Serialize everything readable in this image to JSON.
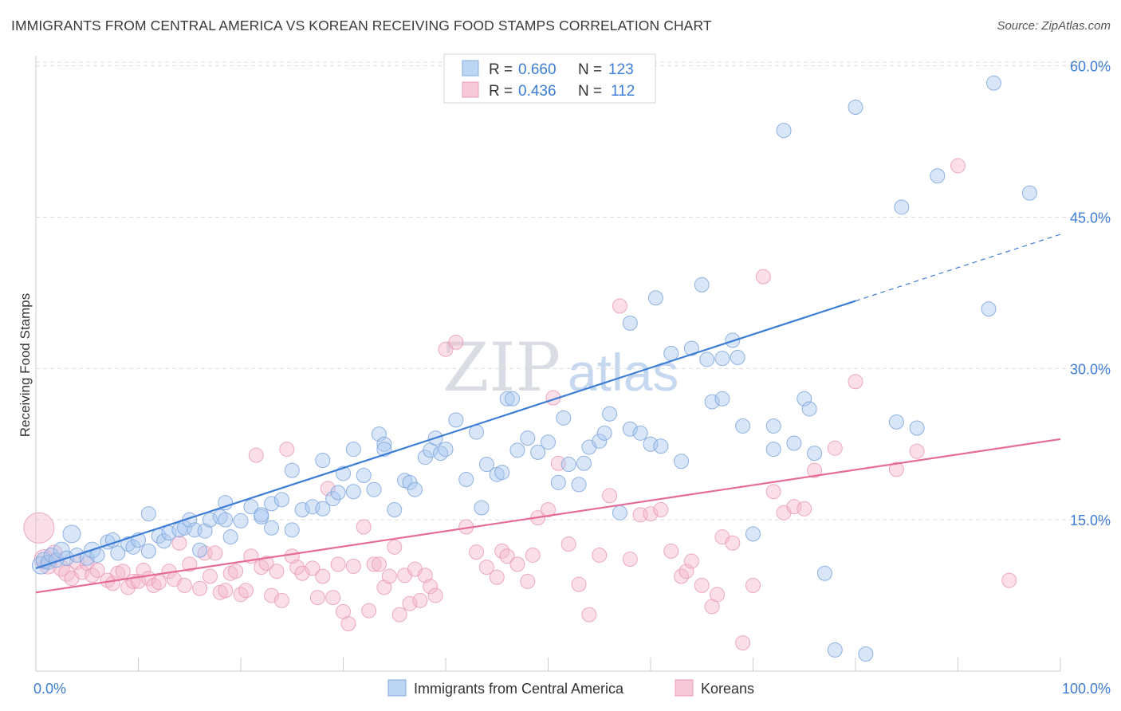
{
  "title": "IMMIGRANTS FROM CENTRAL AMERICA VS KOREAN RECEIVING FOOD STAMPS CORRELATION CHART",
  "source": "Source: ZipAtlas.com",
  "watermark": {
    "zip": "ZIP",
    "atlas": "atlas"
  },
  "colors": {
    "blue": "#3d7dd6",
    "blue_fill": "#a9c8ef",
    "pink": "#e66b9a",
    "pink_fill": "#f4b8cc",
    "grid": "#dddddd"
  },
  "legend": {
    "blue": {
      "r_label": "R =",
      "r_value": "0.660",
      "n_label": "N =",
      "n_value": "123"
    },
    "pink": {
      "r_label": "R =",
      "r_value": "0.436",
      "n_label": "N =",
      "n_value": "112"
    }
  },
  "chart_data": {
    "type": "scatter",
    "title": "IMMIGRANTS FROM CENTRAL AMERICA VS KOREAN RECEIVING FOOD STAMPS CORRELATION CHART",
    "xlabel": "",
    "ylabel": "Receiving Food Stamps",
    "xlim": [
      0,
      100
    ],
    "ylim": [
      0,
      61
    ],
    "x_tick_labels": [
      "0.0%",
      "100.0%"
    ],
    "y_ticks": [
      15,
      30,
      45,
      60
    ],
    "y_tick_labels": [
      "15.0%",
      "30.0%",
      "45.0%",
      "60.0%"
    ],
    "grid": true,
    "legend_placement": "top-center",
    "series": [
      {
        "name": "Immigrants from Central America",
        "color": "#3d7dd6",
        "r": 0.66,
        "n": 123,
        "trend": {
          "x0": 0,
          "y0": 10.2,
          "x1": 80,
          "y1": 36.7,
          "dash_to_x": 100,
          "dash_to_y": 43.3
        },
        "points": [
          [
            0.5,
            10.5,
            9
          ],
          [
            0.8,
            11,
            8
          ],
          [
            1.2,
            10.8,
            7
          ],
          [
            1.5,
            11.5,
            7
          ],
          [
            2,
            11,
            7
          ],
          [
            2.5,
            12,
            8
          ],
          [
            3,
            11.2,
            7
          ],
          [
            3.5,
            13.6,
            9
          ],
          [
            4,
            11.5,
            7
          ],
          [
            5,
            11.2,
            7
          ],
          [
            5.5,
            12,
            8
          ],
          [
            6,
            11.5,
            7
          ],
          [
            7,
            12.8,
            7
          ],
          [
            7.5,
            13,
            7
          ],
          [
            8,
            11.7,
            7
          ],
          [
            9,
            12.6,
            7
          ],
          [
            9.5,
            12.3,
            7
          ],
          [
            10,
            13,
            7
          ],
          [
            11,
            11.9,
            7
          ],
          [
            11,
            15.6,
            7
          ],
          [
            12,
            13.4,
            7
          ],
          [
            12.5,
            12.9,
            7
          ],
          [
            13,
            13.7,
            7
          ],
          [
            14,
            14,
            7
          ],
          [
            14.5,
            14.2,
            7
          ],
          [
            15,
            15,
            7
          ],
          [
            15.5,
            14,
            7
          ],
          [
            16,
            12,
            7
          ],
          [
            16.5,
            13.9,
            7
          ],
          [
            17,
            15,
            7
          ],
          [
            18,
            15.3,
            7
          ],
          [
            18.5,
            15,
            7
          ],
          [
            18.5,
            16.7,
            7
          ],
          [
            19,
            13.3,
            7
          ],
          [
            20,
            14.9,
            7
          ],
          [
            21,
            16.3,
            7
          ],
          [
            22,
            15.3,
            7
          ],
          [
            22,
            15.5,
            7
          ],
          [
            23,
            14.2,
            7
          ],
          [
            23,
            16.6,
            7
          ],
          [
            24,
            17,
            7
          ],
          [
            25,
            19.9,
            7
          ],
          [
            25,
            14,
            7
          ],
          [
            26,
            16,
            7
          ],
          [
            27,
            16.3,
            7
          ],
          [
            28,
            20.9,
            7
          ],
          [
            28,
            16.1,
            7
          ],
          [
            29,
            17.1,
            7
          ],
          [
            29.5,
            17.7,
            7
          ],
          [
            30,
            19.6,
            7
          ],
          [
            31,
            22,
            7
          ],
          [
            31,
            17.8,
            7
          ],
          [
            32,
            19.4,
            7
          ],
          [
            33,
            18,
            7
          ],
          [
            33.5,
            23.5,
            7
          ],
          [
            34,
            22.5,
            7
          ],
          [
            34,
            22,
            7
          ],
          [
            35,
            16,
            7
          ],
          [
            36,
            18.9,
            7
          ],
          [
            36.5,
            18.7,
            7
          ],
          [
            37,
            18,
            7
          ],
          [
            38,
            21.2,
            7
          ],
          [
            38.5,
            21.9,
            7
          ],
          [
            39,
            23.1,
            7
          ],
          [
            39.5,
            21.6,
            7
          ],
          [
            40,
            22,
            7
          ],
          [
            41,
            24.9,
            7
          ],
          [
            42,
            19,
            7
          ],
          [
            43,
            23.7,
            7
          ],
          [
            43.5,
            16.2,
            7
          ],
          [
            44,
            20.5,
            7
          ],
          [
            45,
            19.5,
            7
          ],
          [
            45.5,
            19.7,
            7
          ],
          [
            46,
            27,
            7
          ],
          [
            46.5,
            27,
            7
          ],
          [
            47,
            21.9,
            7
          ],
          [
            48,
            23.1,
            7
          ],
          [
            49,
            21.7,
            7
          ],
          [
            50,
            22.7,
            7
          ],
          [
            51,
            18.7,
            7
          ],
          [
            51.5,
            25.1,
            7
          ],
          [
            52,
            20.5,
            7
          ],
          [
            53,
            18.5,
            7
          ],
          [
            53.5,
            20.6,
            7
          ],
          [
            54,
            22.2,
            7
          ],
          [
            55,
            22.8,
            7
          ],
          [
            55.5,
            23.6,
            7
          ],
          [
            56,
            25.5,
            7
          ],
          [
            57,
            15.7,
            7
          ],
          [
            58,
            34.5,
            7
          ],
          [
            58,
            24,
            7
          ],
          [
            59,
            23.6,
            7
          ],
          [
            60,
            22.5,
            7
          ],
          [
            60.5,
            37,
            7
          ],
          [
            61,
            22.3,
            7
          ],
          [
            62,
            31.5,
            7
          ],
          [
            63,
            20.8,
            7
          ],
          [
            64,
            32,
            7
          ],
          [
            65,
            38.3,
            7
          ],
          [
            65.5,
            30.9,
            7
          ],
          [
            66,
            26.7,
            7
          ],
          [
            67,
            27,
            7
          ],
          [
            67,
            31,
            7
          ],
          [
            68,
            32.8,
            7
          ],
          [
            68.5,
            31.1,
            7
          ],
          [
            69,
            24.3,
            7
          ],
          [
            70,
            13.6,
            7
          ],
          [
            72,
            24.3,
            7
          ],
          [
            72,
            22,
            7
          ],
          [
            73,
            53.6,
            7
          ],
          [
            74,
            22.6,
            7
          ],
          [
            75,
            27,
            7
          ],
          [
            75.5,
            26,
            7
          ],
          [
            76,
            21.6,
            7
          ],
          [
            77,
            9.7,
            7
          ],
          [
            78,
            2.1,
            7
          ],
          [
            80,
            55.9,
            7
          ],
          [
            81,
            1.7,
            7
          ],
          [
            84,
            24.7,
            7
          ],
          [
            84.5,
            46,
            7
          ],
          [
            86,
            24.1,
            7
          ],
          [
            88,
            49.1,
            7
          ],
          [
            93,
            35.9,
            7
          ],
          [
            93.5,
            58.3,
            7
          ],
          [
            97,
            47.4,
            7
          ]
        ]
      },
      {
        "name": "Koreans",
        "color": "#e66b9a",
        "r": 0.436,
        "n": 112,
        "trend": {
          "x0": 0,
          "y0": 7.8,
          "x1": 100,
          "y1": 23
        },
        "points": [
          [
            0.3,
            14.2,
            17
          ],
          [
            0.8,
            11.1,
            10
          ],
          [
            1.2,
            10.5,
            9
          ],
          [
            1.8,
            11.7,
            8
          ],
          [
            2.5,
            10.2,
            8
          ],
          [
            3,
            9.7,
            8
          ],
          [
            3.5,
            9.2,
            7
          ],
          [
            4,
            10.8,
            7
          ],
          [
            4.5,
            9.8,
            7
          ],
          [
            5,
            10.7,
            7
          ],
          [
            5.5,
            9.5,
            7
          ],
          [
            6,
            10,
            7
          ],
          [
            7,
            9,
            7
          ],
          [
            7.5,
            8.7,
            7
          ],
          [
            8,
            9.7,
            7
          ],
          [
            8.5,
            9.9,
            7
          ],
          [
            9,
            8.3,
            7
          ],
          [
            9.5,
            8.9,
            7
          ],
          [
            10,
            8.9,
            7
          ],
          [
            10.5,
            10,
            7
          ],
          [
            11,
            9.2,
            7
          ],
          [
            11.5,
            8.5,
            7
          ],
          [
            12,
            8.8,
            7
          ],
          [
            13,
            9.9,
            7
          ],
          [
            13.5,
            9.1,
            7
          ],
          [
            14,
            12.7,
            7
          ],
          [
            14.5,
            8.5,
            7
          ],
          [
            15,
            10.6,
            7
          ],
          [
            16,
            8.2,
            7
          ],
          [
            16.5,
            11.7,
            7
          ],
          [
            17,
            9.4,
            7
          ],
          [
            17.5,
            11.7,
            7
          ],
          [
            18,
            7.8,
            7
          ],
          [
            18.5,
            8,
            7
          ],
          [
            19,
            9.7,
            7
          ],
          [
            19.5,
            9.9,
            7
          ],
          [
            20,
            7.6,
            7
          ],
          [
            20.5,
            8,
            7
          ],
          [
            21,
            11.4,
            7
          ],
          [
            21.5,
            21.4,
            7
          ],
          [
            22,
            10.3,
            7
          ],
          [
            22.5,
            10.7,
            7
          ],
          [
            23,
            7.5,
            7
          ],
          [
            23.5,
            9.9,
            7
          ],
          [
            24,
            7,
            7
          ],
          [
            24.5,
            22,
            7
          ],
          [
            25,
            11.4,
            7
          ],
          [
            25.5,
            10.3,
            7
          ],
          [
            26,
            9.7,
            7
          ],
          [
            27,
            10.2,
            7
          ],
          [
            27.5,
            7.3,
            7
          ],
          [
            28,
            9.4,
            7
          ],
          [
            28.5,
            18.1,
            7
          ],
          [
            29,
            7.3,
            7
          ],
          [
            29.5,
            10.6,
            7
          ],
          [
            30,
            5.9,
            7
          ],
          [
            30.5,
            4.7,
            7
          ],
          [
            31,
            10.4,
            7
          ],
          [
            32,
            14.3,
            7
          ],
          [
            32.5,
            6,
            7
          ],
          [
            33,
            10.6,
            7
          ],
          [
            33.5,
            10.6,
            7
          ],
          [
            34,
            8.3,
            7
          ],
          [
            34.5,
            9.4,
            7
          ],
          [
            35,
            12.3,
            7
          ],
          [
            35.5,
            5.6,
            7
          ],
          [
            36,
            9.5,
            7
          ],
          [
            36.5,
            6.7,
            7
          ],
          [
            37,
            10.1,
            7
          ],
          [
            37.5,
            7,
            7
          ],
          [
            38,
            9.5,
            7
          ],
          [
            38.5,
            8.4,
            7
          ],
          [
            39,
            7.5,
            7
          ],
          [
            40,
            31.9,
            7
          ],
          [
            41,
            32.6,
            7
          ],
          [
            42,
            14.3,
            7
          ],
          [
            43,
            11.8,
            7
          ],
          [
            44,
            10.3,
            7
          ],
          [
            45,
            9.3,
            7
          ],
          [
            45.5,
            11.9,
            7
          ],
          [
            46,
            11.4,
            7
          ],
          [
            47,
            10.6,
            7
          ],
          [
            48,
            8.9,
            7
          ],
          [
            48.5,
            11.5,
            7
          ],
          [
            49,
            15.2,
            7
          ],
          [
            50,
            16,
            7
          ],
          [
            50.5,
            27.1,
            7
          ],
          [
            51,
            20.6,
            7
          ],
          [
            52,
            12.6,
            7
          ],
          [
            53,
            8.6,
            7
          ],
          [
            54,
            5.6,
            7
          ],
          [
            55,
            11.5,
            7
          ],
          [
            56,
            17.4,
            7
          ],
          [
            57,
            36.2,
            7
          ],
          [
            58,
            11.1,
            7
          ],
          [
            59,
            15.5,
            7
          ],
          [
            60,
            15.6,
            7
          ],
          [
            61,
            16,
            7
          ],
          [
            62,
            11.9,
            7
          ],
          [
            63,
            9.4,
            7
          ],
          [
            63.5,
            9.9,
            7
          ],
          [
            64,
            10.9,
            7
          ],
          [
            65,
            8.5,
            7
          ],
          [
            66,
            6.4,
            7
          ],
          [
            66.5,
            7.6,
            7
          ],
          [
            67,
            13.3,
            7
          ],
          [
            68,
            12.7,
            7
          ],
          [
            69,
            2.8,
            7
          ],
          [
            70,
            8.5,
            7
          ],
          [
            71,
            39.1,
            7
          ],
          [
            72,
            17.8,
            7
          ],
          [
            73,
            15.7,
            7
          ],
          [
            74,
            16.3,
            7
          ],
          [
            75,
            16.1,
            7
          ],
          [
            76,
            19.9,
            7
          ],
          [
            78,
            22.1,
            7
          ],
          [
            80,
            28.7,
            7
          ],
          [
            84,
            20,
            7
          ],
          [
            86,
            21.8,
            7
          ],
          [
            90,
            50.1,
            7
          ],
          [
            95,
            9,
            7
          ]
        ]
      }
    ]
  },
  "bottom_legend": {
    "blue_label": "Immigrants from Central America",
    "pink_label": "Koreans"
  }
}
